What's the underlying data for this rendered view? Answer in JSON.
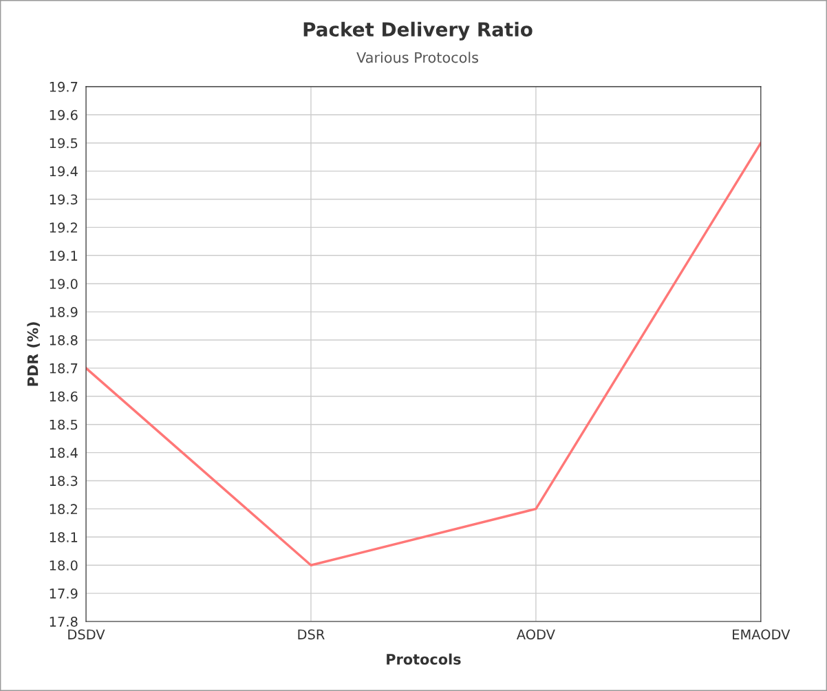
{
  "chart_data": {
    "type": "line",
    "title": "Packet Delivery Ratio",
    "subtitle": "Various Protocols",
    "xlabel": "Protocols",
    "ylabel": "PDR (%)",
    "categories": [
      "DSDV",
      "DSR",
      "AODV",
      "EMAODV"
    ],
    "series": [
      {
        "color": "#ff7777",
        "values": [
          18.7,
          18.0,
          18.2,
          19.5
        ]
      }
    ],
    "ylim": [
      17.8,
      19.7
    ],
    "yticks": [
      17.8,
      17.9,
      {
        "value": 18,
        "label": "18.0"
      },
      18.1,
      18.2,
      18.3,
      18.4,
      18.5,
      18.6,
      18.7,
      18.8,
      18.9,
      {
        "value": 19,
        "label": "19.0"
      },
      19.1,
      19.2,
      19.3,
      19.4,
      19.5,
      19.6,
      19.7
    ],
    "grid": true,
    "legend": false,
    "marker": "none",
    "line_style": "solid"
  }
}
